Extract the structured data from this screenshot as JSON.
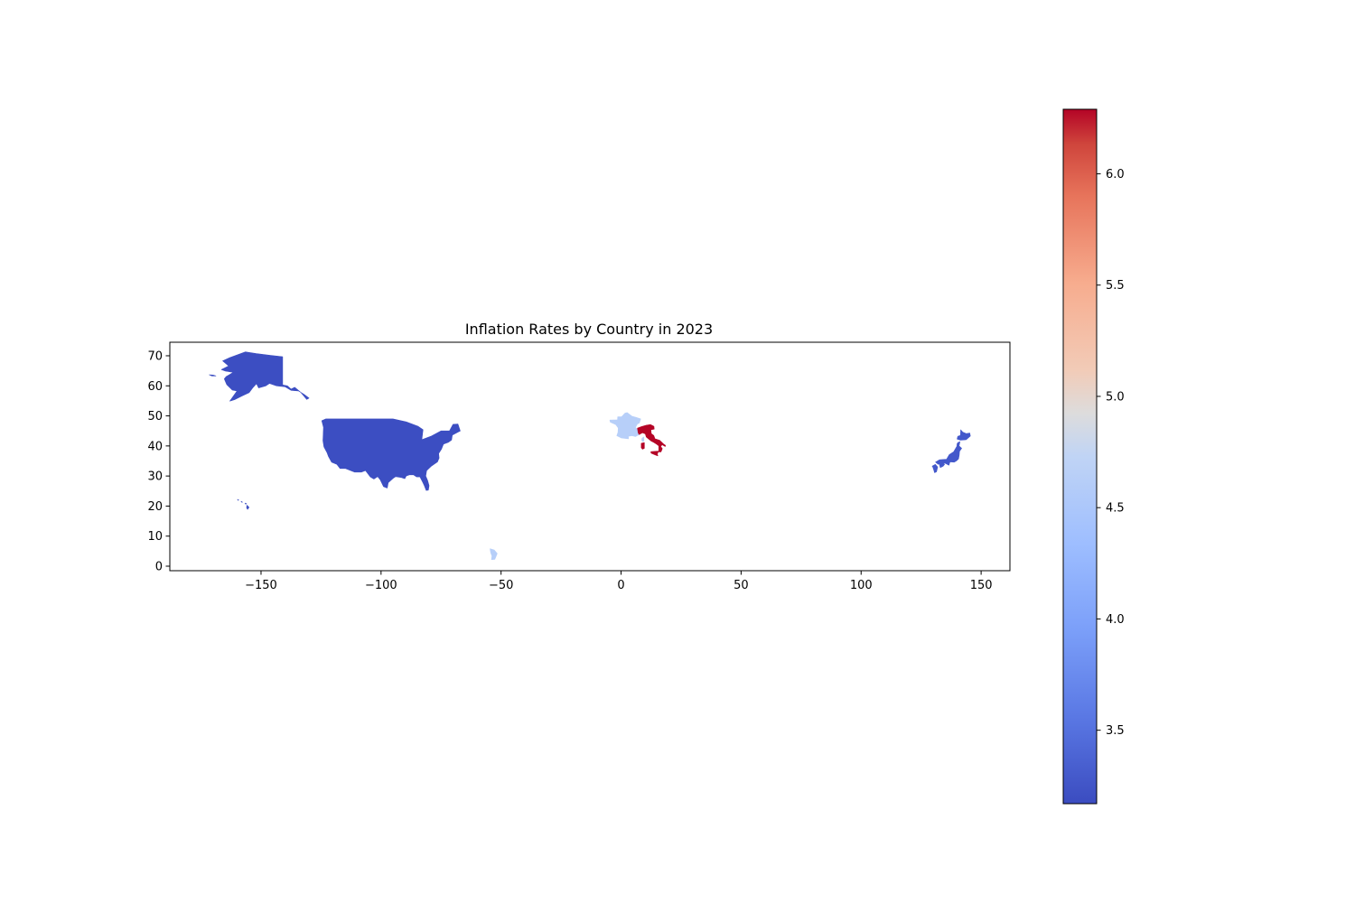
{
  "chart_data": {
    "type": "choropleth map",
    "title": "Inflation Rates by Country in 2023",
    "xlabel": "",
    "ylabel": "",
    "xlim": [
      -188,
      162
    ],
    "ylim": [
      -1.5,
      74.5
    ],
    "x_ticks": [
      -150,
      -100,
      -50,
      0,
      50,
      100,
      150
    ],
    "x_tick_labels": [
      "−150",
      "−100",
      "−50",
      "0",
      "50",
      "100",
      "150"
    ],
    "y_ticks": [
      0,
      10,
      20,
      30,
      40,
      50,
      60,
      70
    ],
    "y_tick_labels": [
      "0",
      "10",
      "20",
      "30",
      "40",
      "50",
      "60",
      "70"
    ],
    "colorbar": {
      "cmap": "coolwarm",
      "range": [
        3.17,
        6.29
      ],
      "ticks": [
        3.5,
        4.0,
        4.5,
        5.0,
        5.5,
        6.0
      ],
      "tick_labels": [
        "3.5",
        "4.0",
        "4.5",
        "5.0",
        "5.5",
        "6.0"
      ]
    },
    "regions": [
      {
        "id": "usa",
        "value": 3.2,
        "color": "#3c4ec2"
      },
      {
        "id": "japan",
        "value": 3.3,
        "color": "#4358cb"
      },
      {
        "id": "france",
        "value": 4.4,
        "color": "#b7cff9"
      },
      {
        "id": "italy",
        "value": 6.29,
        "color": "#b40426"
      }
    ]
  }
}
